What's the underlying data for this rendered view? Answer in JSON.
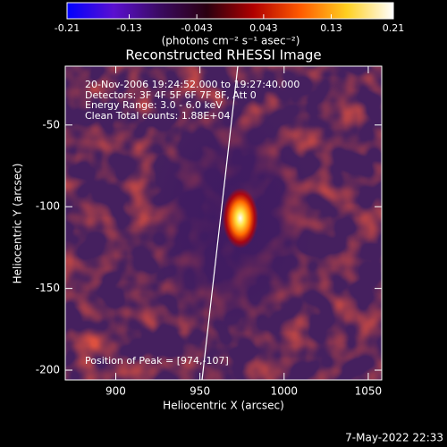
{
  "chart_data": {
    "type": "image",
    "title": "Reconstructed RHESSI Image",
    "xlabel": "Heliocentric X (arcsec)",
    "ylabel": "Heliocentric Y (arcsec)",
    "xlim": [
      870,
      1058
    ],
    "ylim": [
      -206,
      -14
    ],
    "xticks": [
      900,
      950,
      1000,
      1050
    ],
    "yticks": [
      -50,
      -100,
      -150,
      -200
    ],
    "annotations": [
      "20-Nov-2006 19:24:52.000 to 19:27:40.000",
      "Detectors: 3F 4F 5F 6F 7F 8F, Att 0",
      "Energy Range: 3.0 - 6.0 keV",
      "Clean     Total counts: 1.88E+04"
    ],
    "peak_label": "Position of Peak = [974,-107]",
    "peak": {
      "x": 974,
      "y": -107
    },
    "colorbar": {
      "lim": [
        -0.21,
        0.21
      ],
      "ticks": [
        -0.21,
        -0.13,
        -0.043,
        0.043,
        0.13,
        0.21
      ],
      "label": "(photons cm⁻² s⁻¹ asec⁻²)",
      "colormap": [
        "#0000ff",
        "#5a10d0",
        "#3a0a60",
        "#2a0010",
        "#b00000",
        "#ff5a00",
        "#ffd020",
        "#ffffff"
      ]
    },
    "timestamp": "7-May-2022 22:33"
  }
}
